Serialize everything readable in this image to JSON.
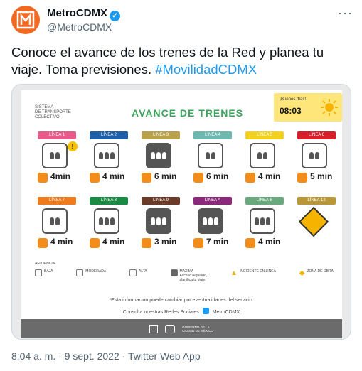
{
  "account": {
    "name": "MetroCDMX",
    "handle": "@MetroCDMX",
    "verified_icon": "verified-badge-icon",
    "more": "···"
  },
  "tweet": {
    "text": "Conoce el avance de los trenes de la Red y planea tu viaje. Toma previsiones.",
    "hashtag": "#MovilidadCDMX",
    "meta": "8:04 a. m. · 9 sept. 2022 · Twitter Web App"
  },
  "poster": {
    "system_label": [
      "SISTEMA",
      "DE TRANSPORTE",
      "COLECTIVO"
    ],
    "title": "AVANCE DE TRENES",
    "greeting": "¡Buenos días!",
    "time": "08:03",
    "lines": [
      {
        "label": "LÍNEA 1",
        "color": "#e85a8a",
        "time": "4min",
        "crowd": "baja",
        "incident": true
      },
      {
        "label": "LÍNEA 2",
        "color": "#1f5fa8",
        "time": "4 min",
        "crowd": "moderada",
        "incident": false
      },
      {
        "label": "LÍNEA 3",
        "color": "#b8a14a",
        "time": "6 min",
        "crowd": "maxima",
        "incident": false
      },
      {
        "label": "LÍNEA 4",
        "color": "#6fb8b0",
        "time": "6 min",
        "crowd": "baja",
        "incident": false
      },
      {
        "label": "LÍNEA 5",
        "color": "#f3d21f",
        "time": "4 min",
        "crowd": "baja",
        "incident": false
      },
      {
        "label": "LÍNEA 6",
        "color": "#d8202a",
        "time": "5 min",
        "crowd": "baja",
        "incident": false
      },
      {
        "label": "LÍNEA 7",
        "color": "#f07b1f",
        "time": "4 min",
        "crowd": "baja",
        "incident": false
      },
      {
        "label": "LÍNEA 8",
        "color": "#1a8a45",
        "time": "4 min",
        "crowd": "moderada",
        "incident": false
      },
      {
        "label": "LÍNEA 9",
        "color": "#6b3b2a",
        "time": "3 min",
        "crowd": "maxima",
        "incident": false
      },
      {
        "label": "LÍNEA A",
        "color": "#8b2a7a",
        "time": "7 min",
        "crowd": "maxima",
        "incident": false
      },
      {
        "label": "LÍNEA B",
        "color": "#6aa97d",
        "time": "4 min",
        "crowd": "moderada",
        "incident": false
      },
      {
        "label": "LÍNEA 12",
        "color": "#b8973a",
        "time": "",
        "crowd": "obra",
        "incident": false
      }
    ],
    "legend_title": "AFLUENCIA",
    "legend": [
      "BAJA",
      "MODERADA",
      "ALTA",
      "MÁXIMA",
      "INCIDENTE EN LÍNEA",
      "ZONA DE OBRA"
    ],
    "legend_note": [
      "Acceso regulado,",
      "planifica tu viaje."
    ],
    "note": "*Esta información puede cambiar por eventualidades del servicio.",
    "social": "Consulta nuestras Redes Sociales",
    "social_handle": "MetroCDMX",
    "gov": [
      "GOBIERNO DE LA",
      "CIUDAD DE MÉXICO"
    ]
  }
}
